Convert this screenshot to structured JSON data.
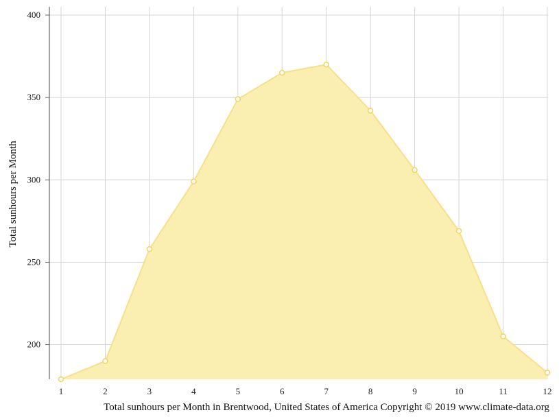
{
  "chart_data": {
    "type": "area",
    "title": "",
    "xlabel": "",
    "ylabel": "Total sunhours per Month",
    "caption": "Total sunhours per Month in Brentwood, United States of America Copyright © 2019 www.climate-data.org",
    "x": [
      1,
      2,
      3,
      4,
      5,
      6,
      7,
      8,
      9,
      10,
      11,
      12
    ],
    "x_tick_labels": [
      "1",
      "2",
      "3",
      "4",
      "5",
      "6",
      "7",
      "8",
      "9",
      "10",
      "11",
      "12"
    ],
    "y_tick_labels": [
      "400",
      "350",
      "300",
      "250",
      "200"
    ],
    "y_ticks": [
      400,
      350,
      300,
      250,
      200
    ],
    "ylim": [
      179,
      405
    ],
    "xlim": [
      1,
      12
    ],
    "grid": true,
    "legend": "none",
    "series": [
      {
        "values": [
          179,
          190,
          258,
          299,
          349,
          365,
          370,
          342,
          306,
          269,
          205,
          183
        ],
        "fill_color": "#faeeb0",
        "line_color": "#f7e089",
        "marker_color": "#f2d45e"
      }
    ]
  }
}
